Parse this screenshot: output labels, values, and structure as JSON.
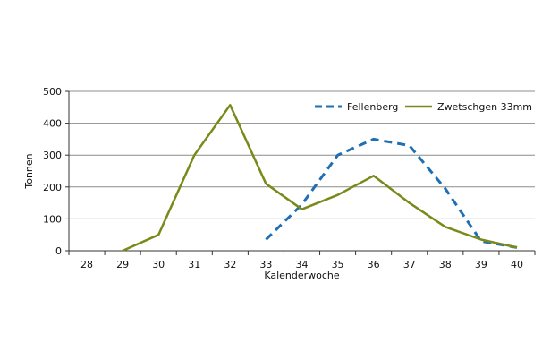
{
  "chart_data": {
    "type": "line",
    "title": "",
    "xlabel": "Kalenderwoche",
    "ylabel": "Tonnen",
    "categories": [
      "28",
      "29",
      "30",
      "31",
      "32",
      "33",
      "34",
      "35",
      "36",
      "37",
      "38",
      "39",
      "40"
    ],
    "ylim": [
      0,
      500
    ],
    "yticks": [
      0,
      100,
      200,
      300,
      400,
      500
    ],
    "grid": true,
    "legend_position": "top-right",
    "series": [
      {
        "name": "Fellenberg",
        "color": "#1f6fb2",
        "style": "dashed",
        "values": [
          null,
          null,
          null,
          null,
          null,
          35,
          145,
          300,
          350,
          330,
          195,
          30,
          10
        ]
      },
      {
        "name": "Zwetschgen 33mm",
        "color": "#7a8a1a",
        "style": "solid",
        "values": [
          null,
          0,
          50,
          300,
          457,
          210,
          130,
          175,
          235,
          150,
          75,
          35,
          10
        ]
      }
    ]
  }
}
